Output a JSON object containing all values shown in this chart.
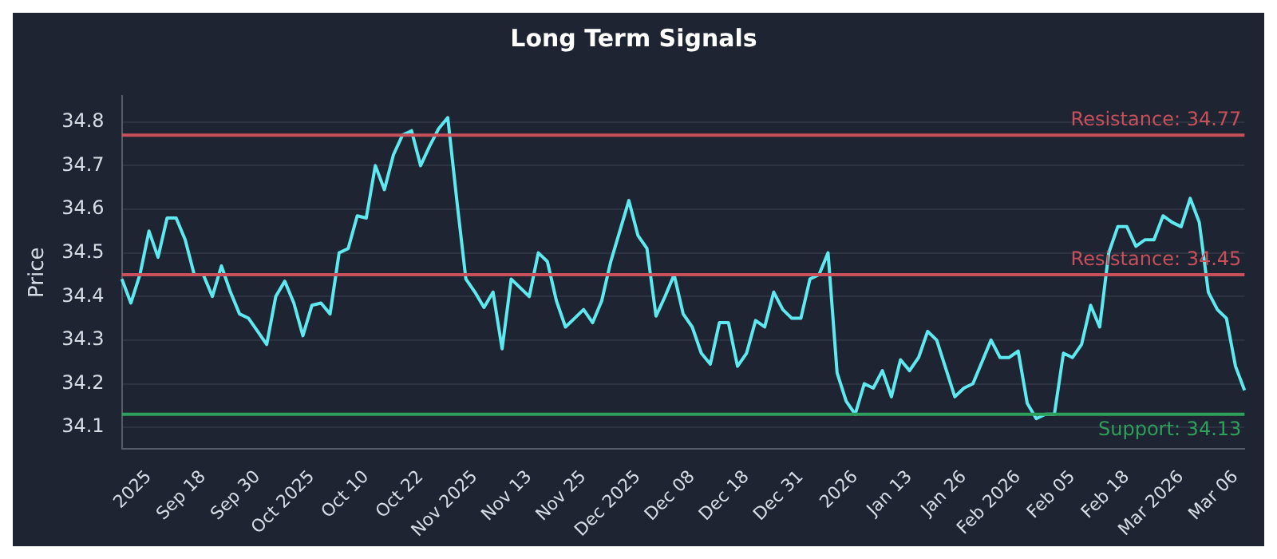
{
  "chart_data": {
    "type": "line",
    "title": "Long Term Signals",
    "ylabel": "Price",
    "categories": [
      null,
      null,
      null,
      "2025",
      null,
      null,
      null,
      null,
      null,
      "Sep 18",
      null,
      null,
      null,
      null,
      null,
      "Sep 30",
      null,
      null,
      null,
      null,
      null,
      "Oct 2025",
      null,
      null,
      null,
      null,
      null,
      "Oct 10",
      null,
      null,
      null,
      null,
      null,
      "Oct 22",
      null,
      null,
      null,
      null,
      null,
      "Nov 2025",
      null,
      null,
      null,
      null,
      null,
      "Nov 13",
      null,
      null,
      null,
      null,
      null,
      "Nov 25",
      null,
      null,
      null,
      null,
      null,
      "Dec 2025",
      null,
      null,
      null,
      null,
      null,
      "Dec 08",
      null,
      null,
      null,
      null,
      null,
      "Dec 18",
      null,
      null,
      null,
      null,
      null,
      "Dec 31",
      null,
      null,
      null,
      null,
      null,
      "2026",
      null,
      null,
      null,
      null,
      null,
      "Jan 13",
      null,
      null,
      null,
      null,
      null,
      "Jan 26",
      null,
      null,
      null,
      null,
      null,
      "Feb 2026",
      null,
      null,
      null,
      null,
      null,
      "Feb 05",
      null,
      null,
      null,
      null,
      null,
      "Feb 18",
      null,
      null,
      null,
      null,
      null,
      "Mar 2026",
      null,
      null,
      null,
      null,
      null,
      "Mar 06",
      null
    ],
    "series": [
      {
        "color": "#5ee8ef",
        "values": [
          34.44,
          34.385,
          34.45,
          34.55,
          34.49,
          34.58,
          34.58,
          34.53,
          34.45,
          34.45,
          34.4,
          34.47,
          34.41,
          34.36,
          34.35,
          34.32,
          34.29,
          34.4,
          34.435,
          34.385,
          34.31,
          34.38,
          34.385,
          34.36,
          34.5,
          34.51,
          34.585,
          34.58,
          34.7,
          34.645,
          34.725,
          34.77,
          34.78,
          34.7,
          34.745,
          34.785,
          34.81,
          34.62,
          34.44,
          34.41,
          34.375,
          34.41,
          34.28,
          34.44,
          34.42,
          34.4,
          34.5,
          34.48,
          34.39,
          34.33,
          34.35,
          34.37,
          34.34,
          34.39,
          34.48,
          34.55,
          34.62,
          34.54,
          34.51,
          34.355,
          34.4,
          34.45,
          34.36,
          34.33,
          34.27,
          34.245,
          34.34,
          34.34,
          34.24,
          34.27,
          34.345,
          34.33,
          34.41,
          34.37,
          34.35,
          34.35,
          34.44,
          34.45,
          34.5,
          34.225,
          34.16,
          34.13,
          34.2,
          34.19,
          34.23,
          34.17,
          34.255,
          34.23,
          34.26,
          34.32,
          34.3,
          34.235,
          34.17,
          34.19,
          34.2,
          34.25,
          34.3,
          34.26,
          34.26,
          34.275,
          34.155,
          34.12,
          34.13,
          34.13,
          34.27,
          34.26,
          34.29,
          34.38,
          34.33,
          34.5,
          34.56,
          34.56,
          34.515,
          34.53,
          34.53,
          34.585,
          34.57,
          34.56,
          34.625,
          34.57,
          34.41,
          34.37,
          34.35,
          34.24,
          34.185
        ]
      }
    ],
    "ylim": [
      34.05,
      34.86
    ],
    "yticks": [
      34.1,
      34.2,
      34.3,
      34.4,
      34.5,
      34.6,
      34.7,
      34.8
    ],
    "grid": "y",
    "legend": false,
    "marker": "none",
    "line_style": "solid",
    "ref_lines": [
      {
        "axis": "y",
        "value": 34.77,
        "label": "Resistance: 34.77",
        "color": "#c8505a"
      },
      {
        "axis": "y",
        "value": 34.45,
        "label": "Resistance: 34.45",
        "color": "#c8505a"
      },
      {
        "axis": "y",
        "value": 34.13,
        "label": "Support: 34.13",
        "color": "#2ea05c"
      }
    ]
  }
}
